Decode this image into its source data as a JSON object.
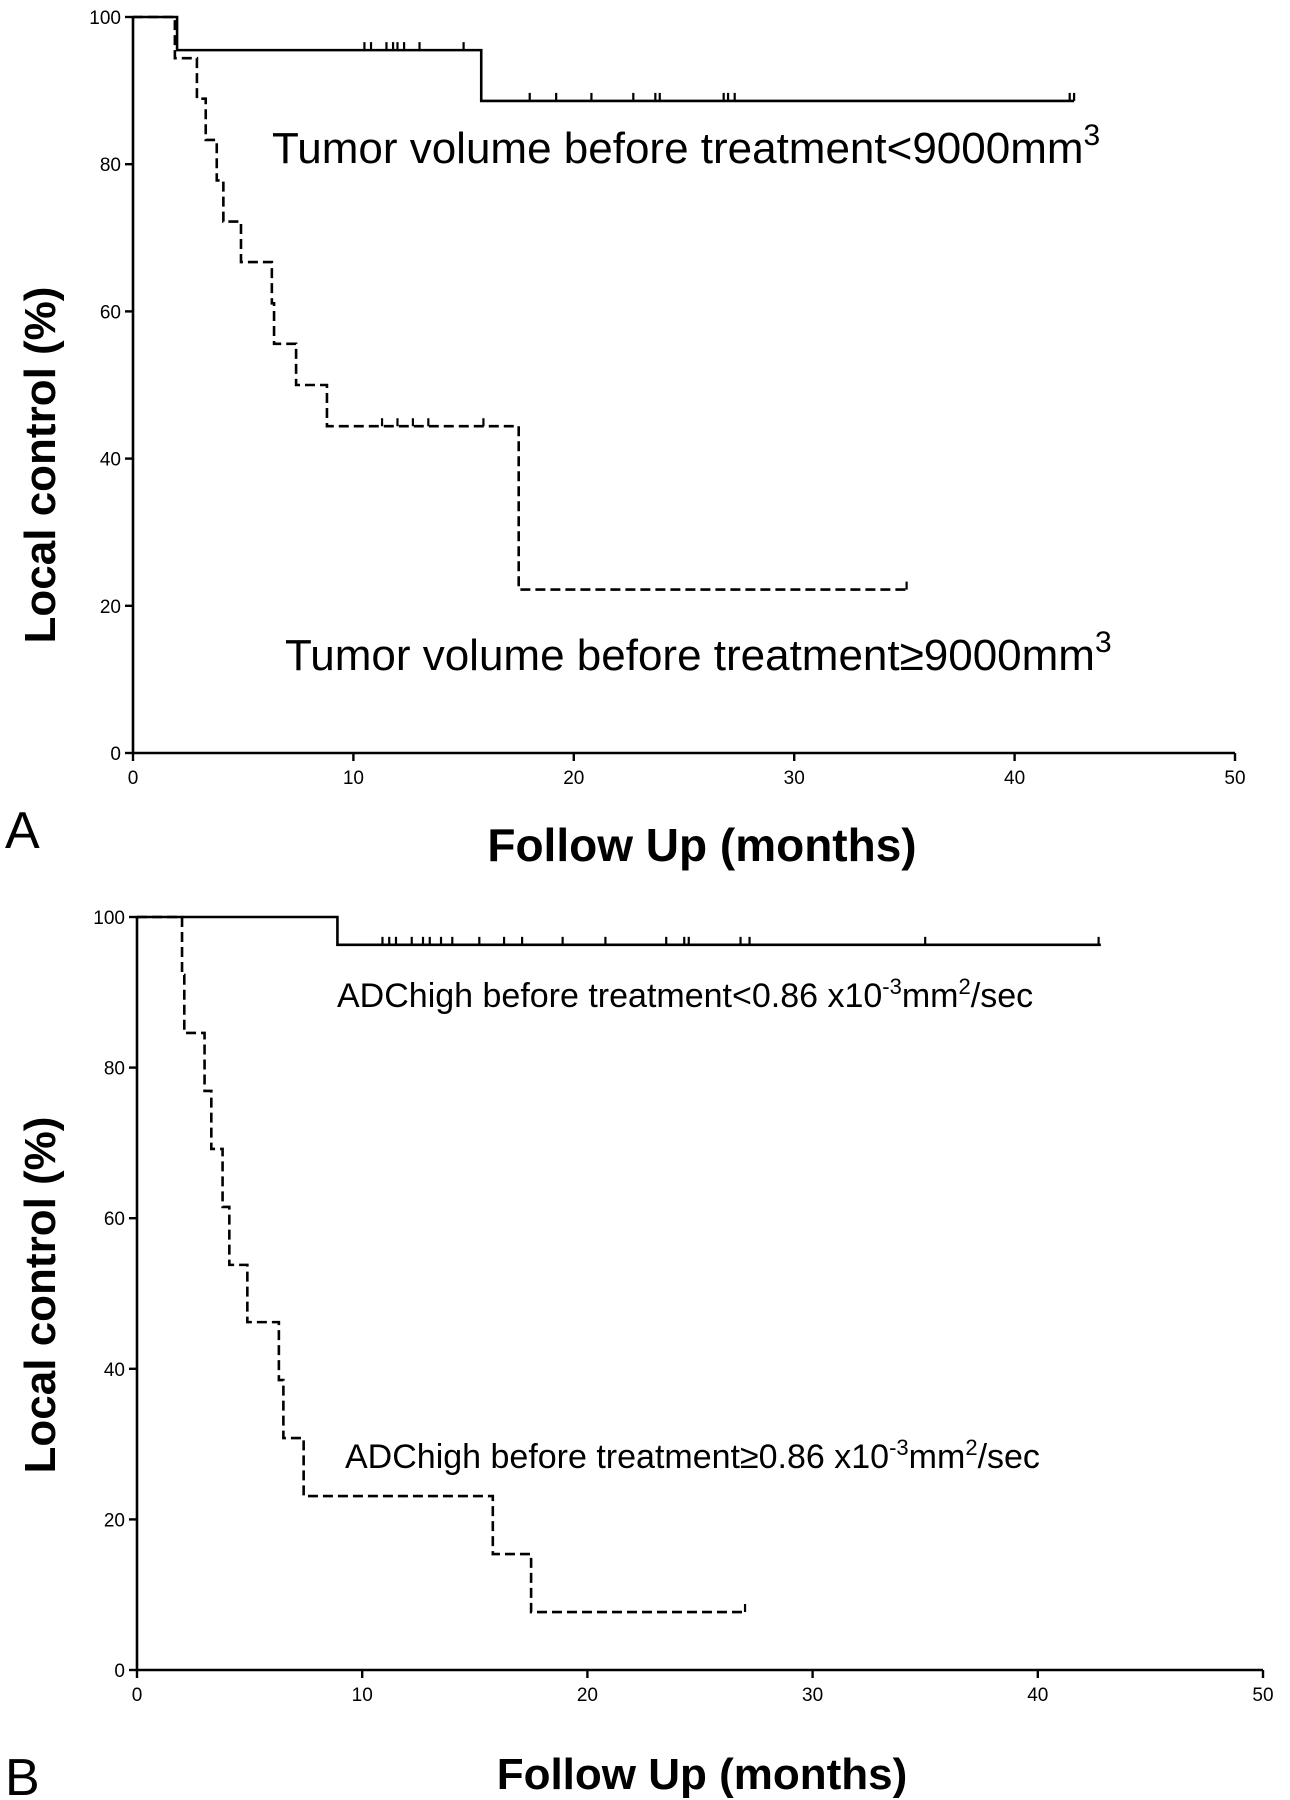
{
  "chart_data": [
    {
      "panel": "A",
      "type": "line",
      "xlabel": "Follow Up (months)",
      "ylabel": "Local control (%)",
      "xlim": [
        0,
        50
      ],
      "ylim": [
        0,
        100
      ],
      "xticks": [
        "0",
        "10",
        "20",
        "30",
        "40",
        "50"
      ],
      "yticks": [
        "0",
        "20",
        "40",
        "60",
        "80",
        "100"
      ],
      "series": [
        {
          "name": "Tumor volume before treatment<9000mm3",
          "label_main": "Tumor volume before treatment<9000mm",
          "label_sup": "3",
          "style": "solid",
          "steps": [
            [
              0,
              100
            ],
            [
              2.0,
              95.5
            ],
            [
              15.8,
              88.6
            ],
            [
              42.7,
              88.6
            ]
          ],
          "censored": [
            10.5,
            10.8,
            11.5,
            11.8,
            12.0,
            12.3,
            13.0,
            15.0,
            18.0,
            19.2,
            20.8,
            22.7,
            23.7,
            23.9,
            26.8,
            27.0,
            27.3,
            42.5,
            42.7
          ]
        },
        {
          "name": "Tumor volume before treatment≥9000mm3",
          "label_main": "Tumor volume before treatment≥9000mm",
          "label_sup": "3",
          "style": "dashed",
          "steps": [
            [
              0,
              100
            ],
            [
              1.9,
              94.4
            ],
            [
              2.9,
              88.9
            ],
            [
              3.3,
              83.3
            ],
            [
              3.8,
              77.8
            ],
            [
              4.1,
              72.2
            ],
            [
              4.9,
              66.7
            ],
            [
              6.3,
              61.1
            ],
            [
              6.4,
              55.6
            ],
            [
              7.4,
              50.0
            ],
            [
              8.8,
              44.4
            ],
            [
              17.5,
              22.2
            ],
            [
              35.1,
              22.2
            ]
          ],
          "censored": [
            11.3,
            12.0,
            12.7,
            13.4,
            15.9,
            35.1
          ]
        }
      ]
    },
    {
      "panel": "B",
      "type": "line",
      "xlabel": "Follow Up (months)",
      "ylabel": "Local control (%)",
      "xlim": [
        0,
        50
      ],
      "ylim": [
        0,
        100
      ],
      "xticks": [
        "0",
        "10",
        "20",
        "30",
        "40",
        "50"
      ],
      "yticks": [
        "0",
        "20",
        "40",
        "60",
        "80",
        "100"
      ],
      "series": [
        {
          "name": "ADChigh before treatment<0.86 x10-3mm2/sec",
          "label_parts": [
            "ADChigh before treatment<0.86 x10",
            "-3",
            "mm",
            "2",
            "/sec"
          ],
          "style": "solid",
          "steps": [
            [
              0,
              100
            ],
            [
              8.9,
              96.3
            ],
            [
              42.8,
              96.3
            ]
          ],
          "censored": [
            10.9,
            11.2,
            11.5,
            12.2,
            12.7,
            13.0,
            13.5,
            14.0,
            15.2,
            16.3,
            17.1,
            18.9,
            20.8,
            23.5,
            24.3,
            24.5,
            26.8,
            27.2,
            35.0,
            42.7
          ]
        },
        {
          "name": "ADChigh before treatment≥0.86 x10-3mm2/sec",
          "label_parts": [
            "ADChigh before treatment≥0.86 x10",
            "-3",
            "mm",
            "2",
            "/sec"
          ],
          "style": "dashed",
          "steps": [
            [
              0,
              100
            ],
            [
              2.0,
              92.3
            ],
            [
              2.1,
              84.6
            ],
            [
              3.0,
              76.9
            ],
            [
              3.3,
              69.2
            ],
            [
              3.8,
              61.5
            ],
            [
              4.1,
              53.8
            ],
            [
              4.9,
              46.2
            ],
            [
              6.3,
              38.5
            ],
            [
              6.5,
              30.8
            ],
            [
              7.4,
              23.1
            ],
            [
              15.8,
              15.4
            ],
            [
              17.5,
              7.7
            ],
            [
              27.0,
              7.7
            ]
          ],
          "censored": [
            27.0
          ]
        }
      ]
    }
  ]
}
